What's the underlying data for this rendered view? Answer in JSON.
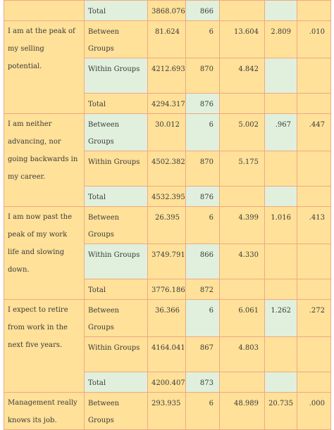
{
  "rows_top": {
    "total_label": "Total",
    "total_ss": "3868.076",
    "total_df": "866"
  },
  "items": [
    {
      "description": "I am at the peak of my selling potential.",
      "between": {
        "label": "Between Groups",
        "ss": "81.624",
        "df": "6",
        "ms": "13.604",
        "f": "2.809",
        "sig": ".010"
      },
      "within": {
        "label": "Within Groups",
        "ss": "4212.693",
        "df": "870",
        "ms": "4.842"
      },
      "total": {
        "label": "Total",
        "ss": "4294.317",
        "df": "876"
      }
    },
    {
      "description": "I am neither advancing, nor going backwards in my career.",
      "between": {
        "label": "Between Groups",
        "ss": "30.012",
        "df": "6",
        "ms": "5.002",
        "f": ".967",
        "sig": ".447"
      },
      "within": {
        "label": "Within Groups",
        "ss": "4502.382",
        "df": "870",
        "ms": "5.175"
      },
      "total": {
        "label": "Total",
        "ss": "4532.395",
        "df": "876"
      }
    },
    {
      "description": "I am now past the peak of my work life and slowing down.",
      "between": {
        "label": "Between Groups",
        "ss": "26.395",
        "df": "6",
        "ms": "4.399",
        "f": "1.016",
        "sig": ".413"
      },
      "within": {
        "label": "Within Groups",
        "ss": "3749.791",
        "df": "866",
        "ms": "4.330"
      },
      "total": {
        "label": "Total",
        "ss": "3776.186",
        "df": "872"
      }
    },
    {
      "description": "I expect to retire from work in the next five years.",
      "between": {
        "label": "Between Groups",
        "ss": "36.366",
        "df": "6",
        "ms": "6.061",
        "f": "1.262",
        "sig": ".272"
      },
      "within": {
        "label": "Within Groups",
        "ss": "4164.041",
        "df": "867",
        "ms": "4.803"
      },
      "total": {
        "label": "Total",
        "ss": "4200.407",
        "df": "873"
      }
    },
    {
      "description": "Management really knows its job.",
      "between": {
        "label": "Between Groups",
        "ss": "293.935",
        "df": "6",
        "ms": "48.989",
        "f": "20.735",
        "sig": ".000"
      }
    }
  ],
  "colors": {
    "cell_yellow": "#ffe199",
    "cell_green": "#e0f0dc",
    "border": "#f0a883"
  }
}
